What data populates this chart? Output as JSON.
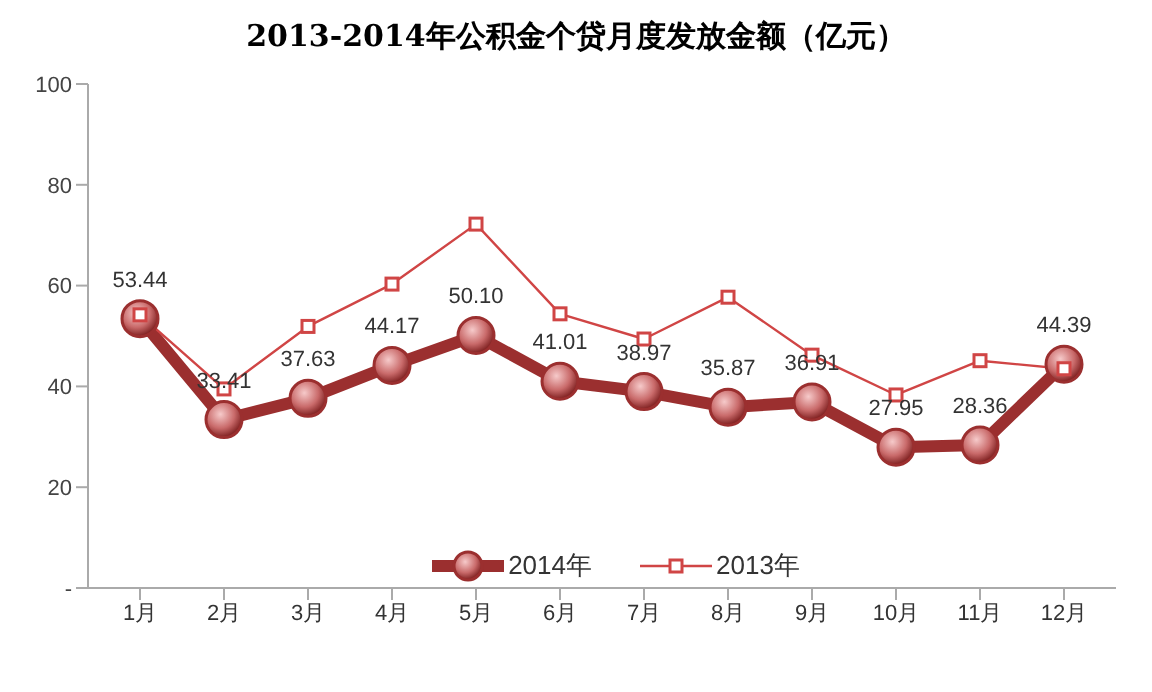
{
  "chart_data": {
    "type": "line",
    "title": "2013-2014年公积金个贷月度发放金额（亿元）",
    "categories": [
      "1月",
      "2月",
      "3月",
      "4月",
      "5月",
      "6月",
      "7月",
      "8月",
      "9月",
      "10月",
      "11月",
      "12月"
    ],
    "series": [
      {
        "name": "2014年",
        "color": "#9b2f2f",
        "marker": "circle",
        "values": [
          53.44,
          33.41,
          37.63,
          44.17,
          50.1,
          41.01,
          38.97,
          35.87,
          36.91,
          27.95,
          28.36,
          44.39
        ],
        "value_labels": [
          "53.44",
          "33.41",
          "37.63",
          "44.17",
          "50.10",
          "41.01",
          "38.97",
          "35.87",
          "36.91",
          "27.95",
          "28.36",
          "44.39"
        ]
      },
      {
        "name": "2013年",
        "color": "#d04545",
        "marker": "square",
        "values": [
          54.2,
          39.5,
          51.9,
          60.3,
          72.2,
          54.4,
          49.4,
          57.7,
          46.2,
          38.3,
          45.1,
          43.5
        ]
      }
    ],
    "ylim": [
      0,
      100
    ],
    "yticks": [
      {
        "value": 0,
        "label": "-"
      },
      20,
      40,
      60,
      80,
      100
    ],
    "grid": false,
    "legend": "bottom"
  }
}
